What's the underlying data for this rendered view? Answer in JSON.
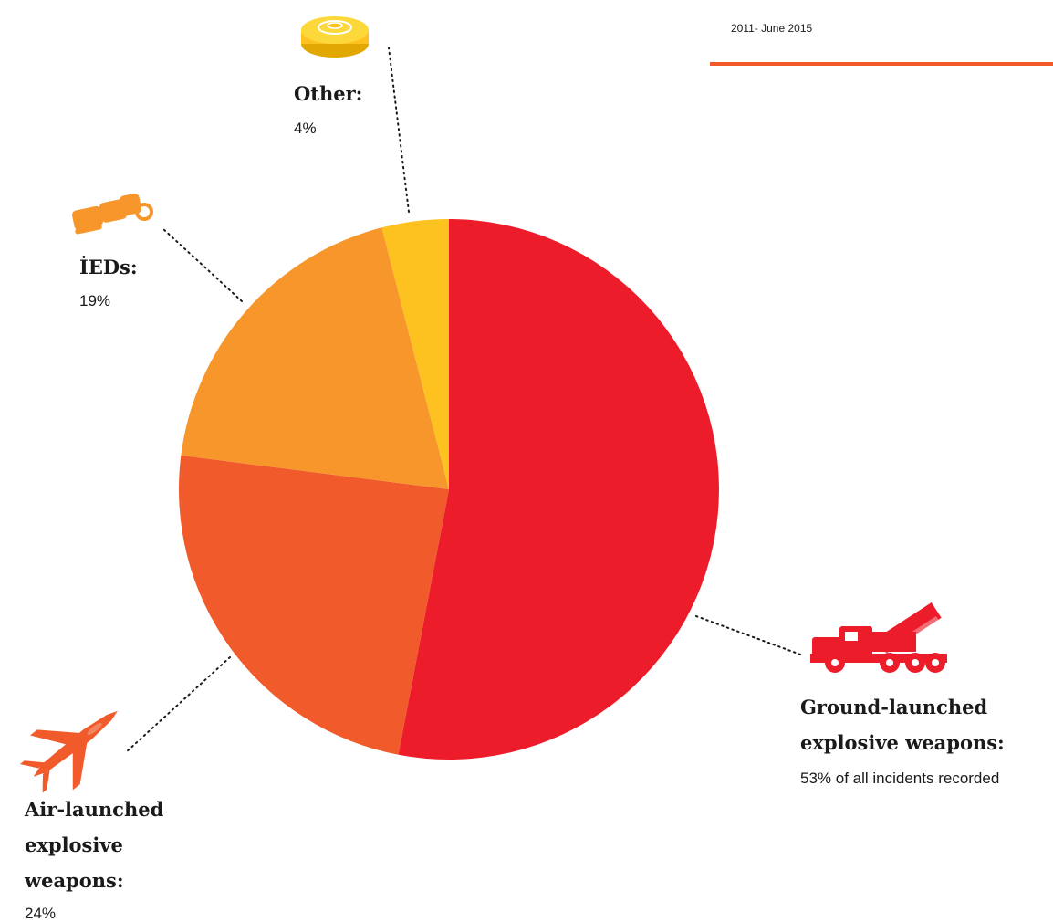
{
  "header": {
    "period": "2011- June 2015",
    "accent_color": "#f15a29"
  },
  "chart_data": {
    "type": "pie",
    "title": "",
    "period": "2011- June 2015",
    "slices": [
      {
        "name": "Ground-launched explosive weapons",
        "label_lines": [
          "Ground-launched",
          "explosive weapons:"
        ],
        "value": 53,
        "value_text": "53% of all incidents recorded",
        "color": "#ed1c2b",
        "icon": "rocket-launcher-truck-icon"
      },
      {
        "name": "Air-launched explosive weapons",
        "label_lines": [
          "Air-launched",
          "explosive",
          "weapons:"
        ],
        "value": 24,
        "value_text": "24%",
        "color": "#f15a2b",
        "icon": "fighter-jet-icon"
      },
      {
        "name": "İEDs",
        "label_lines": [
          "İEDs:"
        ],
        "value": 19,
        "value_text": "19%",
        "color": "#f7962a",
        "icon": "ied-bundle-icon"
      },
      {
        "name": "Other",
        "label_lines": [
          "Other:"
        ],
        "value": 4,
        "value_text": "4%",
        "color": "#fdc220",
        "icon": "landmine-icon"
      }
    ],
    "legend": "none"
  }
}
